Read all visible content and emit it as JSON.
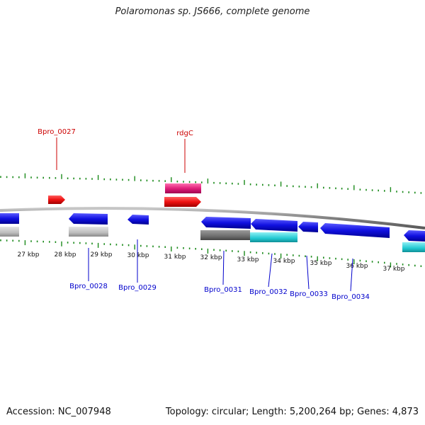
{
  "title": "Polaromonas sp. JS666, complete genome",
  "footer": {
    "accession": "Accession: NC_007948",
    "info": "Topology: circular; Length: 5,200,264 bp; Genes: 4,873"
  },
  "ticks": [
    "27 kbp",
    "28 kbp",
    "29 kbp",
    "30 kbp",
    "31 kbp",
    "32 kbp",
    "33 kbp",
    "34 kbp",
    "35 kbp",
    "36 kbp",
    "37 kbp"
  ],
  "top_labels": [
    "Bpro_0027",
    "rdgC"
  ],
  "bottom_labels": [
    "Bpro_0028",
    "Bpro_0029",
    "Bpro_0031",
    "Bpro_0032",
    "Bpro_0033",
    "Bpro_0034"
  ],
  "colors": {
    "backbone": "#808080",
    "gene_forward": "#ee1111",
    "gene_reverse": "#1010e0",
    "rna_pink": "#e0207a",
    "cds_grey": "#bdbdbd",
    "cds_dark": "#6e6e6e",
    "cds_cyan": "#22c9d2",
    "tick": "#1b8a1b",
    "label_top": "#cc0000",
    "label_bottom": "#0000cc"
  }
}
